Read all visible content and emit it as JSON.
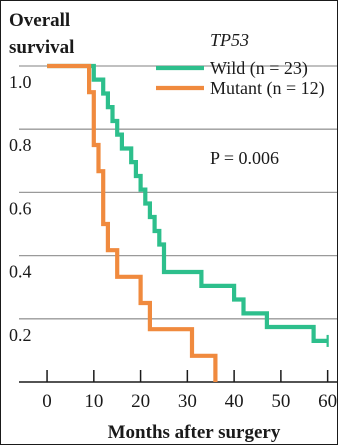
{
  "chart_data": {
    "type": "line",
    "step": true,
    "ylabel": "Overall survival",
    "xlabel": "Months after surgery",
    "xlim": [
      -6,
      62
    ],
    "ylim": [
      0,
      1.05
    ],
    "xticks": [
      0,
      10,
      20,
      30,
      40,
      50,
      60
    ],
    "yticks": [
      1.0,
      0.8,
      0.6,
      0.4,
      0.2
    ],
    "ytick_labels": [
      "1.0",
      "0.8",
      "0.6",
      "0.4",
      "0.2"
    ],
    "grid": "horizontal",
    "legend": {
      "title": "TP53",
      "position": "top-right"
    },
    "annotation": "P = 0.006",
    "series": [
      {
        "name": "Wild (n = 23)",
        "color": "#2dbf8c",
        "censor_marks": [
          60
        ],
        "points": [
          [
            0,
            1.0
          ],
          [
            10,
            1.0
          ],
          [
            10,
            0.957
          ],
          [
            12,
            0.957
          ],
          [
            12,
            0.913
          ],
          [
            13,
            0.913
          ],
          [
            13,
            0.87
          ],
          [
            14,
            0.87
          ],
          [
            14,
            0.826
          ],
          [
            15,
            0.826
          ],
          [
            15,
            0.783
          ],
          [
            16,
            0.783
          ],
          [
            16,
            0.739
          ],
          [
            18,
            0.739
          ],
          [
            18,
            0.696
          ],
          [
            19,
            0.696
          ],
          [
            19,
            0.652
          ],
          [
            20,
            0.652
          ],
          [
            20,
            0.609
          ],
          [
            21,
            0.609
          ],
          [
            21,
            0.565
          ],
          [
            22,
            0.565
          ],
          [
            22,
            0.522
          ],
          [
            23,
            0.522
          ],
          [
            23,
            0.478
          ],
          [
            24,
            0.478
          ],
          [
            24,
            0.435
          ],
          [
            25,
            0.435
          ],
          [
            25,
            0.348
          ],
          [
            33,
            0.348
          ],
          [
            33,
            0.304
          ],
          [
            40,
            0.304
          ],
          [
            40,
            0.261
          ],
          [
            42,
            0.261
          ],
          [
            42,
            0.217
          ],
          [
            47,
            0.217
          ],
          [
            47,
            0.174
          ],
          [
            57,
            0.174
          ],
          [
            57,
            0.13
          ],
          [
            60,
            0.13
          ]
        ]
      },
      {
        "name": "Mutant (n = 12)",
        "color": "#f08a3e",
        "points": [
          [
            0,
            1.0
          ],
          [
            9,
            1.0
          ],
          [
            9,
            0.917
          ],
          [
            10,
            0.917
          ],
          [
            10,
            0.75
          ],
          [
            11,
            0.75
          ],
          [
            11,
            0.667
          ],
          [
            12,
            0.667
          ],
          [
            12,
            0.5
          ],
          [
            13,
            0.5
          ],
          [
            13,
            0.417
          ],
          [
            15,
            0.417
          ],
          [
            15,
            0.333
          ],
          [
            20,
            0.333
          ],
          [
            20,
            0.25
          ],
          [
            22,
            0.25
          ],
          [
            22,
            0.167
          ],
          [
            31,
            0.167
          ],
          [
            31,
            0.083
          ],
          [
            36,
            0.083
          ],
          [
            36,
            0.0
          ]
        ]
      }
    ]
  }
}
